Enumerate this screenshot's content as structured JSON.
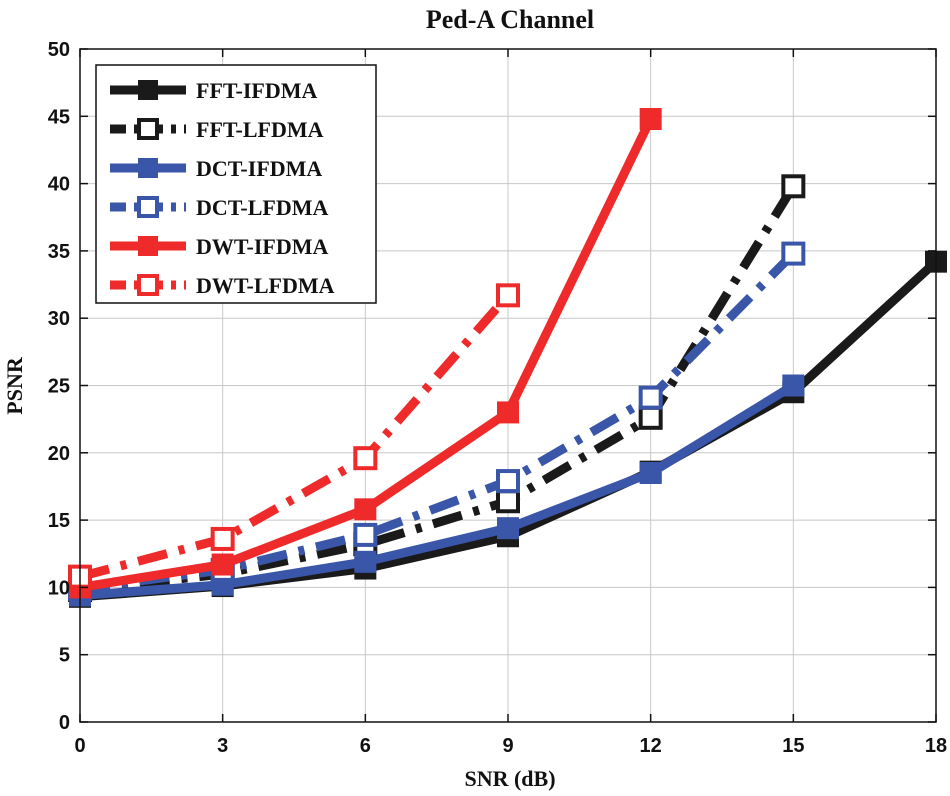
{
  "chart_data": {
    "type": "line",
    "title": "Ped-A Channel",
    "xlabel": "SNR (dB)",
    "ylabel": "PSNR",
    "xlim": [
      0,
      18
    ],
    "ylim": [
      0,
      50
    ],
    "xticks": [
      0,
      3,
      6,
      9,
      12,
      15,
      18
    ],
    "yticks": [
      0,
      5,
      10,
      15,
      20,
      25,
      30,
      35,
      40,
      45,
      50
    ],
    "grid": true,
    "legend_position": "top-left",
    "series": [
      {
        "name": "FFT-IFDMA",
        "color": "#1a1a1a",
        "dash": "solid",
        "marker": "filled-square",
        "x": [
          0,
          3,
          6,
          9,
          12,
          15,
          18
        ],
        "y": [
          9.3,
          10.1,
          11.4,
          13.8,
          18.6,
          24.5,
          34.2
        ]
      },
      {
        "name": "FFT-LFDMA",
        "color": "#1a1a1a",
        "dash": "dashdot",
        "marker": "open-square",
        "x": [
          0,
          3,
          6,
          9,
          12,
          15
        ],
        "y": [
          9.8,
          11.0,
          13.2,
          16.4,
          22.6,
          39.8
        ]
      },
      {
        "name": "DCT-IFDMA",
        "color": "#3a56a8",
        "dash": "solid",
        "marker": "filled-square",
        "x": [
          0,
          3,
          6,
          9,
          12,
          15
        ],
        "y": [
          9.4,
          10.2,
          11.9,
          14.4,
          18.5,
          25.0
        ]
      },
      {
        "name": "DCT-LFDMA",
        "color": "#3a56a8",
        "dash": "dashdot",
        "marker": "open-square",
        "x": [
          0,
          3,
          6,
          9,
          12,
          15
        ],
        "y": [
          9.9,
          11.3,
          13.9,
          17.9,
          24.1,
          34.8
        ]
      },
      {
        "name": "DWT-IFDMA",
        "color": "#ee2a2a",
        "dash": "solid",
        "marker": "filled-square",
        "x": [
          0,
          3,
          6,
          9,
          12
        ],
        "y": [
          10.0,
          11.7,
          15.8,
          23.0,
          44.8
        ]
      },
      {
        "name": "DWT-LFDMA",
        "color": "#ee2a2a",
        "dash": "dashdot",
        "marker": "open-square",
        "x": [
          0,
          3,
          6,
          9
        ],
        "y": [
          10.8,
          13.6,
          19.6,
          31.7
        ]
      }
    ]
  }
}
